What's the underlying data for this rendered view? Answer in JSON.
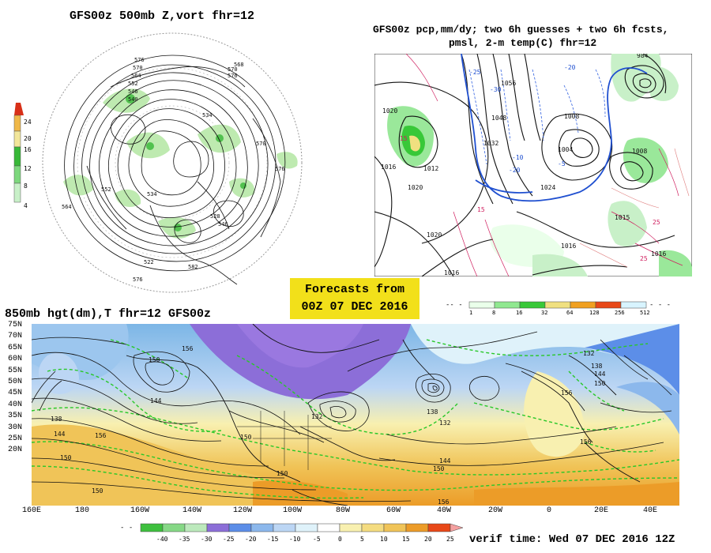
{
  "panels": {
    "polar": {
      "title": "GFS00z  500mb Z,vort    fhr=12",
      "colorbar_ticks": [
        "24",
        "20",
        "16",
        "12",
        "8",
        "4"
      ],
      "colorbar_colors": [
        "#d83018",
        "#f0b848",
        "#f2e69a",
        "#38b838",
        "#7dd87d",
        "#c8f0c8"
      ],
      "contour_labels": [
        "576",
        "570",
        "564",
        "552",
        "546",
        "540",
        "534",
        "528",
        "522",
        "516",
        "570",
        "576",
        "552",
        "546",
        "558",
        "564",
        "582"
      ]
    },
    "precip": {
      "title_line1": "GFS00z pcp,mm/dy; two 6h guesses + two 6h fcsts,",
      "title_line2": "pmsl, 2-m temp(C)  fhr=12",
      "colorbar_ticks": [
        "1",
        "8",
        "16",
        "32",
        "64",
        "128",
        "256",
        "512"
      ],
      "colorbar_colors": [
        "#eaffea",
        "#90e890",
        "#38c838",
        "#f0e080",
        "#f0a020",
        "#e84818",
        "#f0d0e8",
        "#d8f4ff"
      ],
      "pressure_labels": [
        "1020",
        "1016",
        "1012",
        "1056",
        "1048",
        "1040",
        "1032",
        "1024",
        "1008",
        "1004",
        "1000",
        "1016",
        "1020",
        "1016"
      ],
      "temp_labels": [
        "-25",
        "-20",
        "-10",
        "-5",
        "15",
        "25",
        "20",
        "15"
      ]
    },
    "hgt850": {
      "title": "850mb hgt(dm),T  fhr=12 GFS00z",
      "lat_labels": [
        "75N",
        "70N",
        "65N",
        "60N",
        "55N",
        "50N",
        "45N",
        "40N",
        "35N",
        "30N",
        "25N",
        "20N"
      ],
      "lon_labels": [
        "160E",
        "180",
        "160W",
        "140W",
        "120W",
        "100W",
        "80W",
        "60W",
        "40W",
        "20W",
        "0",
        "20E",
        "40E"
      ],
      "height_labels": [
        "150",
        "156",
        "144",
        "138",
        "144",
        "156",
        "150",
        "156",
        "132",
        "138",
        "132",
        "144",
        "150",
        "150",
        "156",
        "150",
        "138",
        "156",
        "150",
        "132"
      ],
      "colorbar_ticks": [
        "-40",
        "-35",
        "-30",
        "-25",
        "-20",
        "-15",
        "-10",
        "-5",
        "0",
        "5",
        "10",
        "15",
        "20",
        "25"
      ],
      "colorbar_colors": [
        "#3ec03e",
        "#86d886",
        "#bce9bc",
        "#8c6ed8",
        "#5c8ee8",
        "#8cb8ec",
        "#bcd6f4",
        "#dff2fa",
        "#ffffff",
        "#f8f0b0",
        "#f4dc80",
        "#f0c458",
        "#ec9c28",
        "#e84818",
        "#f4a0a0"
      ]
    }
  },
  "forecast_box": {
    "line1": "Forecasts from",
    "line2": "00Z 07 DEC 2016"
  },
  "verif_time": "verif time: Wed 07 DEC 2016 12Z"
}
